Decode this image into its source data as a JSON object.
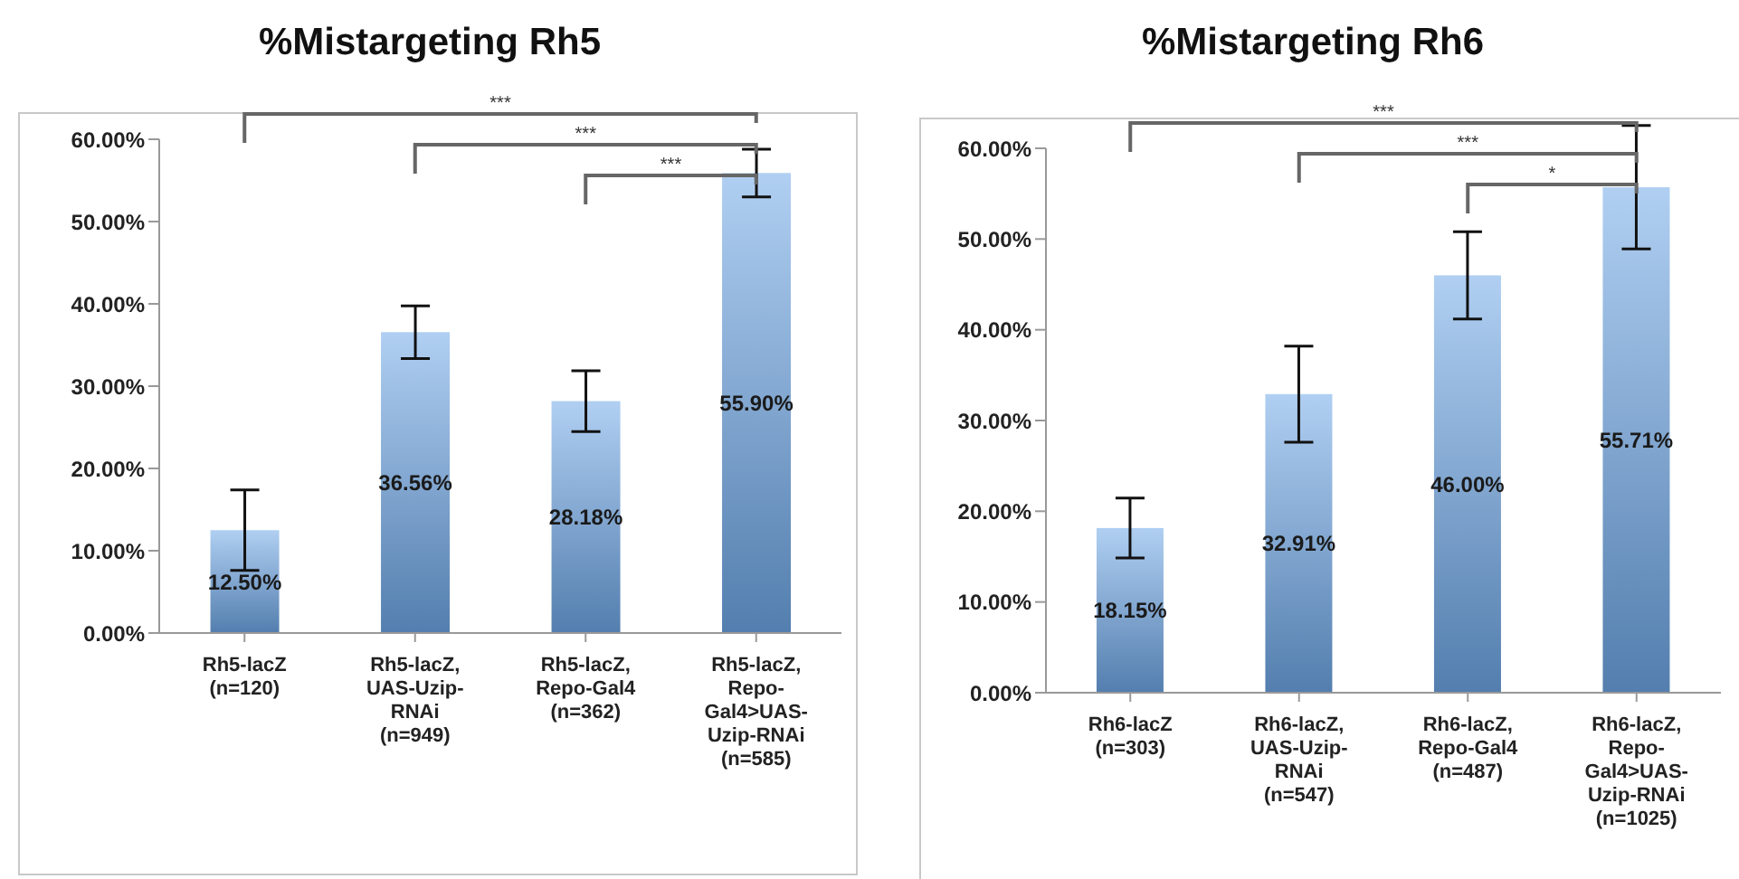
{
  "chart_data": [
    {
      "type": "bar",
      "title": "%Mistargeting Rh5",
      "categories": [
        "Rh5-lacZ\n(n=120)",
        "Rh5-lacZ,\nUAS-Uzip-\nRNAi\n(n=949)",
        "Rh5-lacZ,\nRepo-Gal4\n(n=362)",
        "Rh5-lacZ,\nRepo-\nGal4>UAS-\nUzip-RNAi\n(n=585)"
      ],
      "values": [
        12.5,
        36.56,
        28.18,
        55.9
      ],
      "errors": [
        4.9,
        3.2,
        3.7,
        2.9
      ],
      "value_labels": [
        "12.50%",
        "36.56%",
        "28.18%",
        "55.90%"
      ],
      "color": "#6fa8e8",
      "ylim": [
        0,
        60
      ],
      "yticks": [
        {
          "value": 0,
          "label": "0.00%"
        },
        {
          "value": 10,
          "label": "10.00%"
        },
        {
          "value": 20,
          "label": "20.00%"
        },
        {
          "value": 30,
          "label": "30.00%"
        },
        {
          "value": 40,
          "label": "40.00%"
        },
        {
          "value": 50,
          "label": "50.00%"
        },
        {
          "value": 60,
          "label": "60.00%"
        }
      ],
      "grid": false,
      "legend": false,
      "annotations": [
        "***",
        "***",
        "***"
      ]
    },
    {
      "type": "bar",
      "title": "%Mistargeting Rh6",
      "categories": [
        "Rh6-lacZ\n(n=303)",
        "Rh6-lacZ,\nUAS-Uzip-\nRNAi\n(n=547)",
        "Rh6-lacZ,\nRepo-Gal4\n(n=487)",
        "Rh6-lacZ,\nRepo-\nGal4>UAS-\nUzip-RNAi\n(n=1025)"
      ],
      "values": [
        18.15,
        32.91,
        46.0,
        55.71
      ],
      "errors": [
        3.3,
        5.3,
        4.8,
        6.8
      ],
      "value_labels": [
        "18.15%",
        "32.91%",
        "46.00%",
        "55.71%"
      ],
      "color": "#6fa8e8",
      "ylim": [
        0,
        60
      ],
      "yticks": [
        {
          "value": 0,
          "label": "0.00%"
        },
        {
          "value": 10,
          "label": "10.00%"
        },
        {
          "value": 20,
          "label": "20.00%"
        },
        {
          "value": 30,
          "label": "30.00%"
        },
        {
          "value": 40,
          "label": "40.00%"
        },
        {
          "value": 50,
          "label": "50.00%"
        },
        {
          "value": 60,
          "label": "60.00%"
        }
      ],
      "grid": false,
      "legend": false,
      "annotations": [
        "***",
        "***",
        "*"
      ]
    }
  ]
}
